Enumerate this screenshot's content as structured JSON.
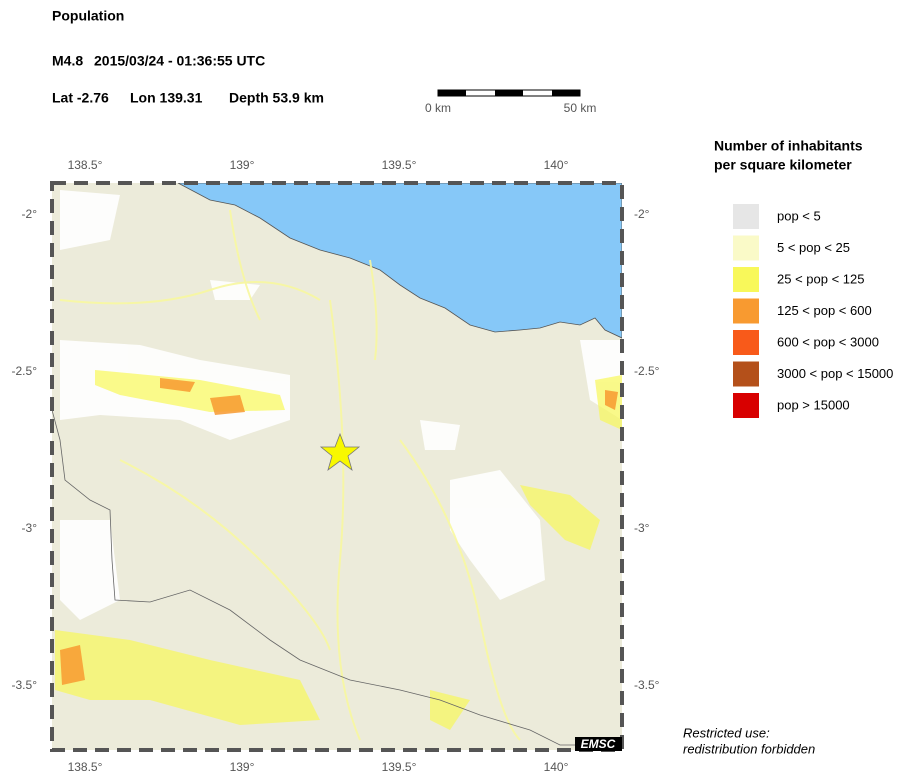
{
  "title": "Population",
  "event": {
    "magnitude": "M4.8",
    "time": "2015/03/24 - 01:36:55 UTC",
    "lat": "Lat -2.76",
    "lon": "Lon 139.31",
    "depth": "Depth  53.9 km"
  },
  "scale_bar": {
    "start": "0 km",
    "end": "50 km"
  },
  "lon_ticks": [
    "138.5°",
    "139°",
    "139.5°",
    "140°"
  ],
  "lat_ticks": [
    "-2°",
    "-2.5°",
    "-3°",
    "-3.5°"
  ],
  "legend": {
    "title": [
      "Number of inhabitants",
      "per square kilometer"
    ],
    "items": [
      {
        "label": "pop < 5",
        "color": "#e6e6e6"
      },
      {
        "label": "5 < pop < 25",
        "color": "#fafac8"
      },
      {
        "label": "25 < pop < 125",
        "color": "#f8f85a"
      },
      {
        "label": "125 < pop < 600",
        "color": "#f89a30"
      },
      {
        "label": "600 < pop < 3000",
        "color": "#f85a1a"
      },
      {
        "label": "3000 < pop < 15000",
        "color": "#b4501a"
      },
      {
        "label": "pop > 15000",
        "color": "#d80000"
      }
    ]
  },
  "notice": [
    "Restricted use:",
    "redistribution forbidden"
  ],
  "credit": "EMSC"
}
